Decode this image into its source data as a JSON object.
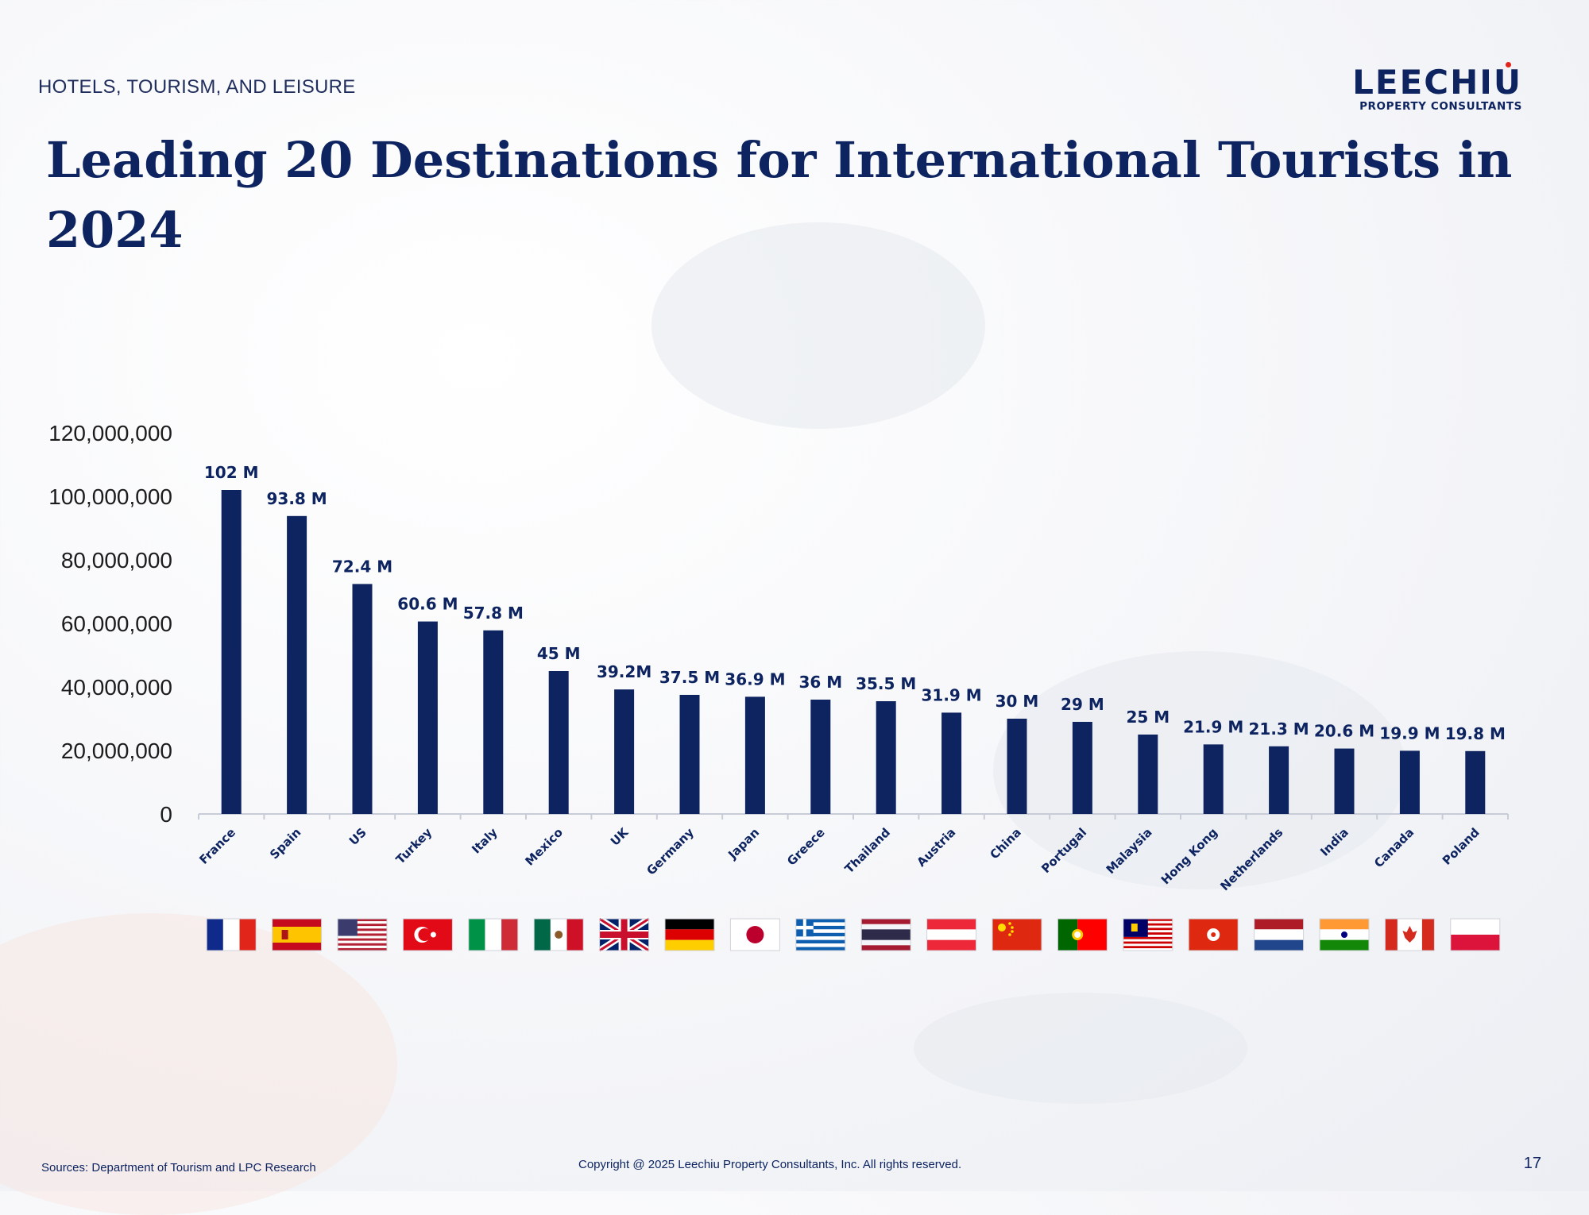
{
  "header": {
    "section": "HOTELS, TOURISM, AND LEISURE",
    "title": "Leading 20 Destinations for International Tourists in 2024",
    "logo_name": "LEECHIU",
    "logo_sub": "PROPERTY CONSULTANTS"
  },
  "chart_data": {
    "type": "bar",
    "title": "Leading 20 Destinations for International Tourists in 2024",
    "xlabel": "",
    "ylabel": "",
    "ylim": [
      0,
      120000000
    ],
    "yticks": [
      0,
      20000000,
      40000000,
      60000000,
      80000000,
      100000000,
      120000000
    ],
    "ytick_labels": [
      "0",
      "20,000,000",
      "40,000,000",
      "60,000,000",
      "80,000,000",
      "100,000,000",
      "120,000,000"
    ],
    "grid": false,
    "legend": "none",
    "bar_color": "#0d2461",
    "categories": [
      "France",
      "Spain",
      "US",
      "Turkey",
      "Italy",
      "Mexico",
      "UK",
      "Germany",
      "Japan",
      "Greece",
      "Thailand",
      "Austria",
      "China",
      "Portugal",
      "Malaysia",
      "Hong Kong",
      "Netherlands",
      "India",
      "Canada",
      "Poland"
    ],
    "values": [
      102000000,
      93800000,
      72400000,
      60600000,
      57800000,
      45000000,
      39200000,
      37500000,
      36900000,
      36000000,
      35500000,
      31900000,
      30000000,
      29000000,
      25000000,
      21900000,
      21300000,
      20600000,
      19900000,
      19800000
    ],
    "data_labels": [
      "102 M",
      "93.8 M",
      "72.4 M",
      "60.6 M",
      "57.8 M",
      "45 M",
      "39.2M",
      "37.5 M",
      "36.9 M",
      "36 M",
      "35.5 M",
      "31.9 M",
      "30 M",
      "29 M",
      "25 M",
      "21.9 M",
      "21.3 M",
      "20.6 M",
      "19.9 M",
      "19.8 M"
    ],
    "flag_icons": [
      "flag-france-icon",
      "flag-spain-icon",
      "flag-us-icon",
      "flag-turkey-icon",
      "flag-italy-icon",
      "flag-mexico-icon",
      "flag-uk-icon",
      "flag-germany-icon",
      "flag-japan-icon",
      "flag-greece-icon",
      "flag-thailand-icon",
      "flag-austria-icon",
      "flag-china-icon",
      "flag-portugal-icon",
      "flag-malaysia-icon",
      "flag-hong-kong-icon",
      "flag-netherlands-icon",
      "flag-india-icon",
      "flag-canada-icon",
      "flag-poland-icon"
    ]
  },
  "footer": {
    "sources": "Sources: Department of Tourism and LPC Research",
    "copyright": "Copyright @ 2025 Leechiu Property Consultants, Inc. All rights reserved.",
    "page_number": "17"
  }
}
